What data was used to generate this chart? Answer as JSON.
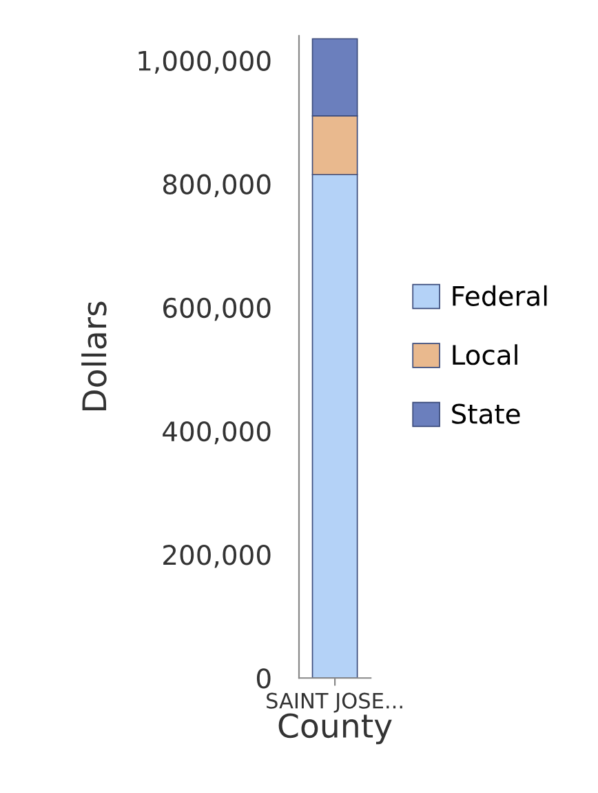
{
  "chart_data": {
    "type": "bar",
    "stacked": true,
    "xlabel": "County",
    "ylabel": "Dollars",
    "categories": [
      "SAINT JOSE..."
    ],
    "series": [
      {
        "name": "Federal",
        "color": "#b4d2f7",
        "values": [
          815000
        ]
      },
      {
        "name": "Local",
        "color": "#e9b98e",
        "values": [
          95000
        ]
      },
      {
        "name": "State",
        "color": "#6b7fbd",
        "values": [
          125000
        ]
      }
    ],
    "ylim": [
      0,
      1040000
    ],
    "yticks": [
      {
        "value": 0,
        "label": "0"
      },
      {
        "value": 200000,
        "label": "200,000"
      },
      {
        "value": 400000,
        "label": "400,000"
      },
      {
        "value": 600000,
        "label": "600,000"
      },
      {
        "value": 800000,
        "label": "800,000"
      },
      {
        "value": 1000000,
        "label": "1,000,000"
      }
    ],
    "grid": false,
    "legend": "right"
  }
}
